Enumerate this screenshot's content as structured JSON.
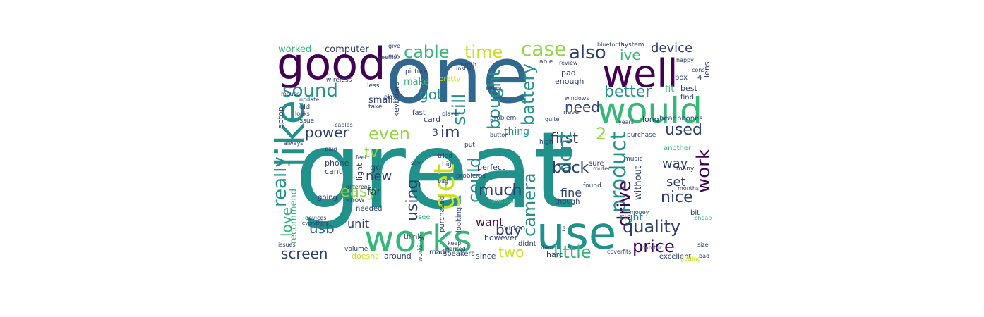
{
  "palette": {
    "purple": "#440154",
    "indigo": "#3b528b",
    "blue": "#31688e",
    "teal": "#21918c",
    "green": "#35b779",
    "lime": "#90d743",
    "yellow": "#c8e020",
    "navy": "#2c3e70"
  },
  "words": [
    {
      "text": "great",
      "color": "teal"
    },
    {
      "text": "one",
      "color": "blue"
    },
    {
      "text": "good",
      "color": "purple"
    },
    {
      "text": "well",
      "color": "purple"
    },
    {
      "text": "would",
      "color": "green"
    },
    {
      "text": "like",
      "color": "teal"
    },
    {
      "text": "use",
      "color": "teal"
    },
    {
      "text": "works",
      "color": "green"
    },
    {
      "text": "sound",
      "color": "teal"
    },
    {
      "text": "cable",
      "color": "green"
    },
    {
      "text": "time",
      "color": "yellow"
    },
    {
      "text": "case",
      "color": "lime"
    },
    {
      "text": "also",
      "color": "navy"
    },
    {
      "text": "ive",
      "color": "green"
    },
    {
      "text": "device",
      "color": "navy"
    },
    {
      "text": "better",
      "color": "teal"
    },
    {
      "text": "got",
      "color": "teal"
    },
    {
      "text": "still",
      "color": "teal"
    },
    {
      "text": "bought",
      "color": "teal"
    },
    {
      "text": "battery",
      "color": "teal"
    },
    {
      "text": "need",
      "color": "navy"
    },
    {
      "text": "even",
      "color": "lime"
    },
    {
      "text": "im",
      "color": "navy"
    },
    {
      "text": "power",
      "color": "navy"
    },
    {
      "text": "first",
      "color": "navy"
    },
    {
      "text": "used",
      "color": "navy"
    },
    {
      "text": "work",
      "color": "purple"
    },
    {
      "text": "get",
      "color": "yellow"
    },
    {
      "text": "could",
      "color": "teal"
    },
    {
      "text": "dont",
      "color": "teal"
    },
    {
      "text": "product",
      "color": "teal"
    },
    {
      "text": "drive",
      "color": "purple"
    },
    {
      "text": "back",
      "color": "navy"
    },
    {
      "text": "way",
      "color": "navy"
    },
    {
      "text": "set",
      "color": "navy"
    },
    {
      "text": "nice",
      "color": "navy"
    },
    {
      "text": "easy",
      "color": "lime"
    },
    {
      "text": "really",
      "color": "teal"
    },
    {
      "text": "love",
      "color": "green"
    },
    {
      "text": "usb",
      "color": "blue"
    },
    {
      "text": "tv",
      "color": "lime"
    },
    {
      "text": "new",
      "color": "navy"
    },
    {
      "text": "using",
      "color": "navy"
    },
    {
      "text": "much",
      "color": "navy"
    },
    {
      "text": "camera",
      "color": "teal"
    },
    {
      "text": "fine",
      "color": "navy"
    },
    {
      "text": "quality",
      "color": "navy"
    },
    {
      "text": "right",
      "color": "teal"
    },
    {
      "text": "price",
      "color": "purple"
    },
    {
      "text": "little",
      "color": "green"
    },
    {
      "text": "buy",
      "color": "navy"
    },
    {
      "text": "two",
      "color": "yellow"
    },
    {
      "text": "want",
      "color": "purple"
    },
    {
      "text": "unit",
      "color": "navy"
    },
    {
      "text": "screen",
      "color": "navy"
    },
    {
      "text": "recommend",
      "color": "green"
    },
    {
      "text": "far",
      "color": "navy"
    },
    {
      "text": "go",
      "color": "navy"
    },
    {
      "text": "perfect",
      "color": "navy"
    },
    {
      "text": "thing",
      "color": "teal"
    },
    {
      "text": "without",
      "color": "navy"
    },
    {
      "text": "computer",
      "color": "navy"
    },
    {
      "text": "worked",
      "color": "green"
    },
    {
      "text": "small",
      "color": "navy"
    },
    {
      "text": "make",
      "color": "green"
    },
    {
      "text": "card",
      "color": "navy"
    },
    {
      "text": "fast",
      "color": "navy"
    },
    {
      "text": "enough",
      "color": "navy"
    },
    {
      "text": "ipad",
      "color": "navy"
    },
    {
      "text": "long",
      "color": "navy"
    },
    {
      "text": "lens",
      "color": "navy"
    },
    {
      "text": "fit",
      "color": "green"
    },
    {
      "text": "best",
      "color": "navy"
    },
    {
      "text": "find",
      "color": "navy"
    },
    {
      "text": "headphones",
      "color": "navy"
    },
    {
      "text": "another",
      "color": "green"
    },
    {
      "text": "many",
      "color": "navy"
    },
    {
      "text": "phone",
      "color": "navy"
    },
    {
      "text": "cant",
      "color": "navy"
    },
    {
      "text": "light",
      "color": "navy"
    },
    {
      "text": "know",
      "color": "navy"
    },
    {
      "text": "needed",
      "color": "navy"
    },
    {
      "text": "going",
      "color": "navy"
    },
    {
      "text": "laptop",
      "color": "navy"
    },
    {
      "text": "keyboard",
      "color": "navy"
    },
    {
      "text": "video",
      "color": "navy"
    },
    {
      "text": "however",
      "color": "navy"
    },
    {
      "text": "didnt",
      "color": "navy"
    },
    {
      "text": "hard",
      "color": "navy"
    },
    {
      "text": "since",
      "color": "navy"
    },
    {
      "text": "made",
      "color": "navy"
    },
    {
      "text": "around",
      "color": "navy"
    },
    {
      "text": "doesnt",
      "color": "yellow"
    },
    {
      "text": "excellent",
      "color": "navy"
    },
    {
      "text": "speakers",
      "color": "navy"
    },
    {
      "text": "volume",
      "color": "navy"
    },
    {
      "text": "working",
      "color": "navy"
    },
    {
      "text": "purchased",
      "color": "navy"
    },
    {
      "text": "looking",
      "color": "navy"
    },
    {
      "text": "think",
      "color": "navy"
    },
    {
      "text": "see",
      "color": "green"
    },
    {
      "text": "though",
      "color": "navy"
    },
    {
      "text": "found",
      "color": "navy"
    },
    {
      "text": "sure",
      "color": "navy"
    },
    {
      "text": "music",
      "color": "navy"
    },
    {
      "text": "purchase",
      "color": "navy"
    },
    {
      "text": "years",
      "color": "navy"
    },
    {
      "text": "bit",
      "color": "navy"
    },
    {
      "text": "play",
      "color": "navy"
    },
    {
      "text": "old",
      "color": "navy"
    },
    {
      "text": "issue",
      "color": "navy"
    },
    {
      "text": "looks",
      "color": "navy"
    },
    {
      "text": "update",
      "color": "navy"
    },
    {
      "text": "mouse",
      "color": "navy"
    },
    {
      "text": "take",
      "color": "navy"
    },
    {
      "text": "less",
      "color": "navy"
    },
    {
      "text": "wireless",
      "color": "navy"
    },
    {
      "text": "pretty",
      "color": "yellow"
    },
    {
      "text": "picture",
      "color": "navy"
    },
    {
      "text": "never",
      "color": "navy"
    },
    {
      "text": "windows",
      "color": "navy"
    },
    {
      "text": "high",
      "color": "navy"
    },
    {
      "text": "able",
      "color": "navy"
    },
    {
      "text": "system",
      "color": "navy"
    },
    {
      "text": "bluetooth",
      "color": "navy"
    },
    {
      "text": "happy",
      "color": "navy"
    },
    {
      "text": "box",
      "color": "navy"
    },
    {
      "text": "cons",
      "color": "navy"
    },
    {
      "text": "review",
      "color": "navy"
    },
    {
      "text": "install",
      "color": "navy"
    },
    {
      "text": "worth",
      "color": "navy"
    },
    {
      "text": "give",
      "color": "navy"
    },
    {
      "text": "may",
      "color": "navy"
    },
    {
      "text": "seems",
      "color": "navy"
    },
    {
      "text": "put",
      "color": "navy"
    },
    {
      "text": "tried",
      "color": "navy"
    },
    {
      "text": "plug",
      "color": "navy"
    },
    {
      "text": "bag",
      "color": "navy"
    },
    {
      "text": "big",
      "color": "navy"
    },
    {
      "text": "say",
      "color": "navy"
    },
    {
      "text": "feel",
      "color": "navy"
    },
    {
      "text": "always",
      "color": "navy"
    },
    {
      "text": "quite",
      "color": "navy"
    },
    {
      "text": "problem",
      "color": "navy"
    },
    {
      "text": "problems",
      "color": "navy"
    },
    {
      "text": "every",
      "color": "navy"
    },
    {
      "text": "player",
      "color": "navy"
    },
    {
      "text": "cables",
      "color": "navy"
    },
    {
      "text": "different",
      "color": "navy"
    },
    {
      "text": "keep",
      "color": "navy"
    },
    {
      "text": "wanted",
      "color": "navy"
    },
    {
      "text": "item",
      "color": "navy"
    },
    {
      "text": "amazon",
      "color": "green"
    },
    {
      "text": "money",
      "color": "navy"
    },
    {
      "text": "cheap",
      "color": "green"
    },
    {
      "text": "months",
      "color": "navy"
    },
    {
      "text": "bad",
      "color": "navy"
    },
    {
      "text": "size",
      "color": "navy"
    },
    {
      "text": "issues",
      "color": "navy"
    },
    {
      "text": "devices",
      "color": "navy"
    },
    {
      "text": "everything",
      "color": "navy"
    },
    {
      "text": "getting",
      "color": "yellow"
    },
    {
      "text": "router",
      "color": "navy"
    },
    {
      "text": "button",
      "color": "navy"
    },
    {
      "text": "cover",
      "color": "navy"
    },
    {
      "text": "fits",
      "color": "navy"
    },
    {
      "text": "monitor",
      "color": "navy"
    },
    {
      "text": "2",
      "color": "lime"
    },
    {
      "text": "3",
      "color": "navy"
    },
    {
      "text": "4",
      "color": "navy"
    },
    {
      "text": "5",
      "color": "navy"
    }
  ]
}
